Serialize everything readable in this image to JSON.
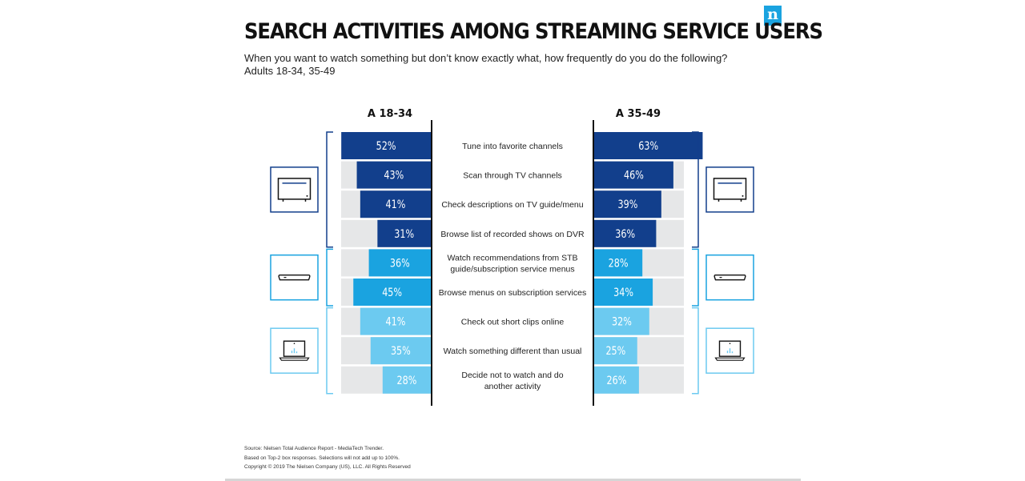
{
  "header": {
    "title": "SEARCH ACTIVITIES AMONG STREAMING SERVICE USERS",
    "subtitle": "When you want to watch something but don’t know exactly what, how frequently do you do the following?",
    "subtitle2": "Adults 18-34, 35-49",
    "logo": "n"
  },
  "footer": {
    "source": "Source: Nielsen Total Audience Report - MediaTech Trender.",
    "note": "Based on Top-2 box responses. Selections will not add up to 100%.",
    "copyright": "Copyright © 2019 The Nielsen Company (US), LLC. All Rights Reserved"
  },
  "chart_data": {
    "type": "bar",
    "orientation": "horizontal",
    "layout": "butterfly",
    "xlim": [
      0,
      100
    ],
    "series": [
      {
        "name": "A 18-34",
        "values": [
          52,
          43,
          41,
          31,
          36,
          45,
          41,
          35,
          28
        ]
      },
      {
        "name": "A 35-49",
        "values": [
          63,
          46,
          39,
          36,
          28,
          34,
          32,
          25,
          26
        ]
      }
    ],
    "categories": [
      [
        "Tune into favorite channels"
      ],
      [
        "Scan through TV channels"
      ],
      [
        "Check descriptions on TV guide/menu"
      ],
      [
        "Browse list of recorded shows on DVR"
      ],
      [
        "Watch recommendations from STB",
        "guide/subscription service menus"
      ],
      [
        "Browse menus on subscription services"
      ],
      [
        "Check out short clips online"
      ],
      [
        "Watch something different than usual"
      ],
      [
        "Decide not to watch and do",
        "another activity"
      ]
    ],
    "groups": [
      {
        "icon": "tv-icon",
        "rows": [
          0,
          3
        ],
        "color": "#123f8c"
      },
      {
        "icon": "set-top-box-icon",
        "rows": [
          4,
          5
        ],
        "color": "#1aa3e0"
      },
      {
        "icon": "laptop-icon",
        "rows": [
          6,
          8
        ],
        "color": "#6ccaf0"
      }
    ],
    "value_format": "{v}%",
    "track_color": "#e6e7e8"
  }
}
